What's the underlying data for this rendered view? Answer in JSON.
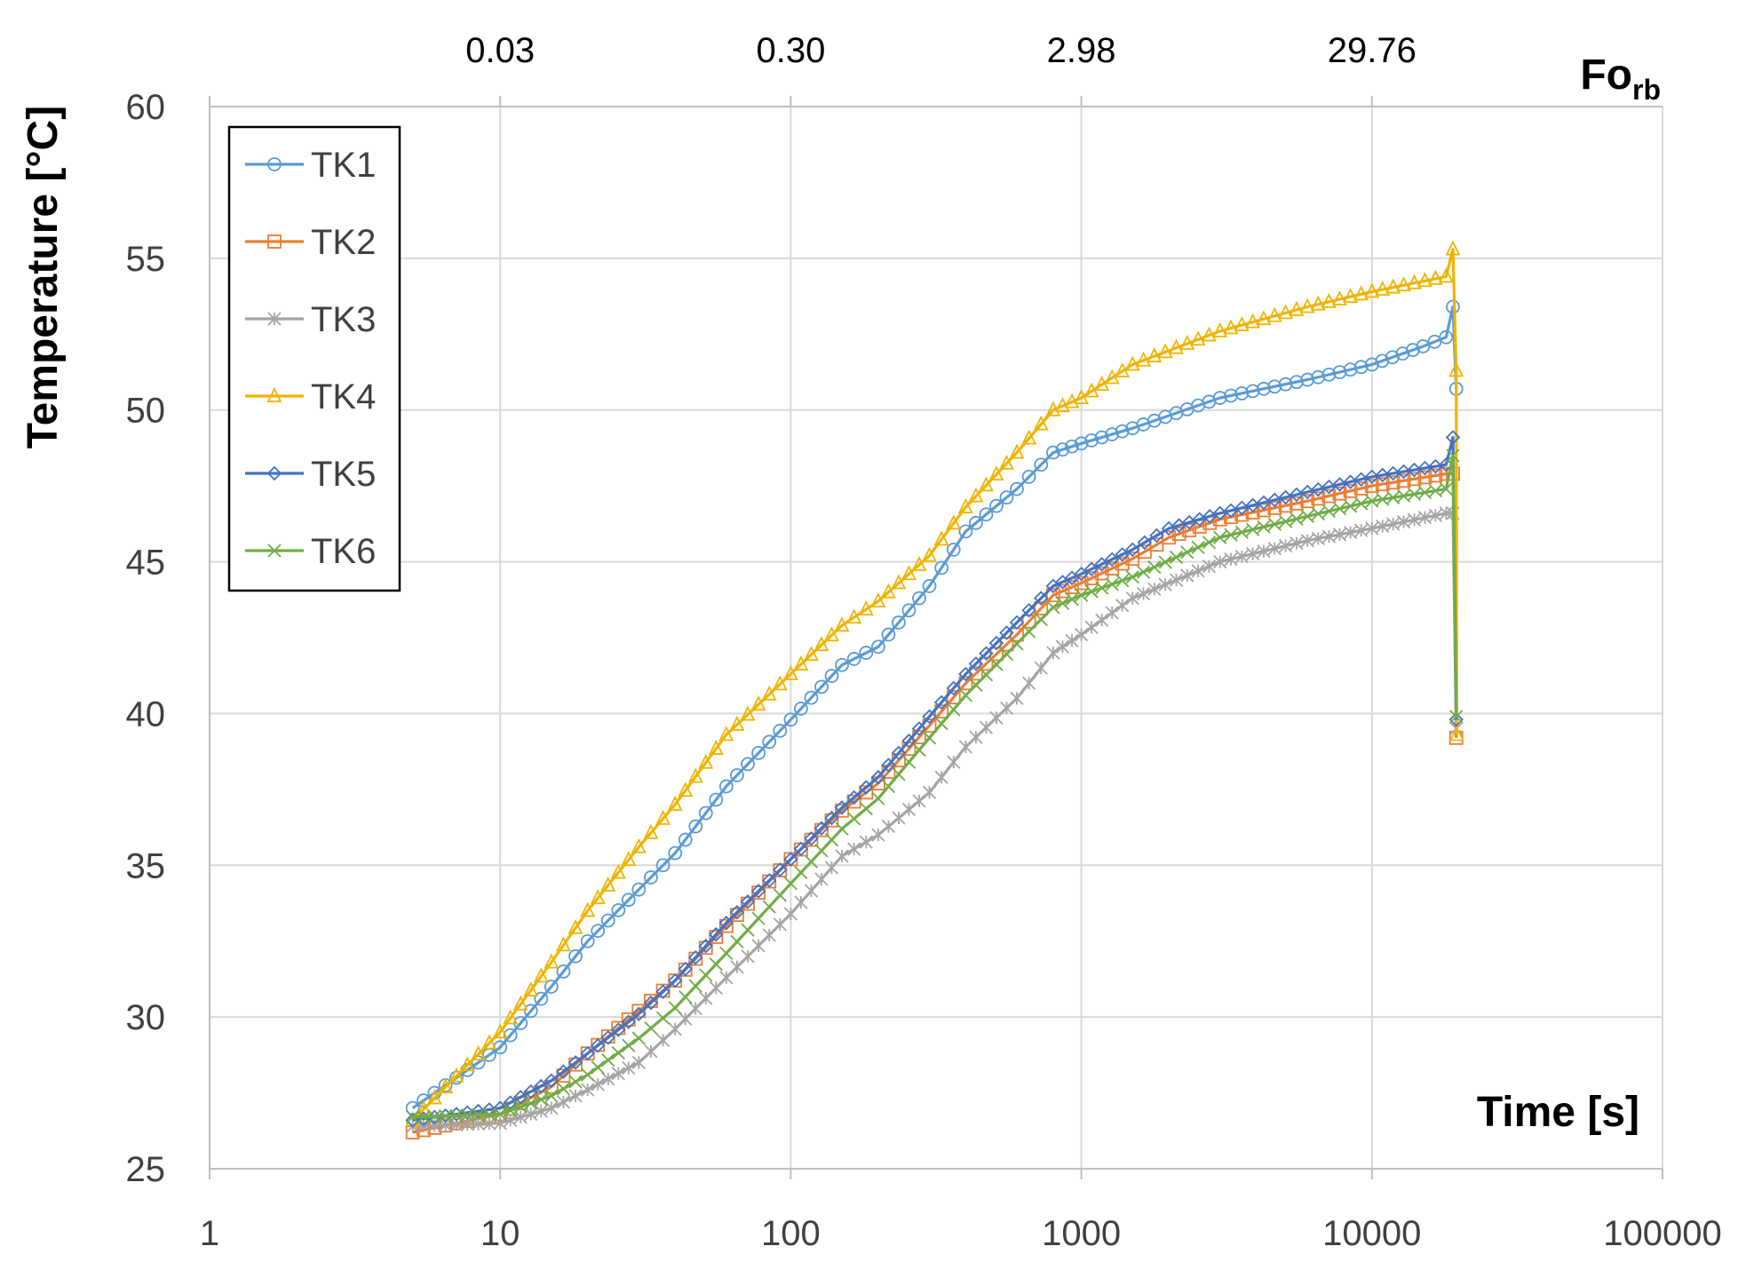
{
  "chart_data": {
    "type": "line",
    "title": "",
    "xlabel": "Time [s]",
    "ylabel": "Temperature [°C]",
    "x_scale": "log",
    "xlim": [
      1,
      100000
    ],
    "ylim": [
      25,
      60
    ],
    "x_ticks": [
      "1",
      "10",
      "100",
      "1000",
      "10000",
      "100000"
    ],
    "y_ticks": [
      "25",
      "30",
      "35",
      "40",
      "45",
      "50",
      "55",
      "60"
    ],
    "top_axis": {
      "label_main": "Fo",
      "label_sub": "rb",
      "ticks": [
        {
          "time": 10,
          "label": "0.03"
        },
        {
          "time": 100,
          "label": "0.30"
        },
        {
          "time": 1000,
          "label": "2.98"
        },
        {
          "time": 10000,
          "label": "29.76"
        }
      ]
    },
    "grid": true,
    "legend_position": "top-left",
    "series": [
      {
        "name": "TK1",
        "color": "#5B9BD5",
        "marker": "circle",
        "points": [
          [
            5,
            27.0
          ],
          [
            10,
            29.0
          ],
          [
            15,
            31.0
          ],
          [
            20,
            32.5
          ],
          [
            30,
            34.2
          ],
          [
            40,
            35.4
          ],
          [
            60,
            37.6
          ],
          [
            100,
            39.8
          ],
          [
            150,
            41.6
          ],
          [
            200,
            42.2
          ],
          [
            300,
            44.2
          ],
          [
            400,
            46.0
          ],
          [
            600,
            47.4
          ],
          [
            800,
            48.6
          ],
          [
            1000,
            48.9
          ],
          [
            1500,
            49.4
          ],
          [
            3000,
            50.4
          ],
          [
            6000,
            51.0
          ],
          [
            10000,
            51.5
          ],
          [
            15000,
            52.1
          ],
          [
            18000,
            52.4
          ],
          [
            19000,
            53.4
          ],
          [
            19500,
            50.7
          ]
        ]
      },
      {
        "name": "TK2",
        "color": "#ED7D31",
        "marker": "square",
        "points": [
          [
            5,
            26.2
          ],
          [
            10,
            26.8
          ],
          [
            15,
            27.7
          ],
          [
            20,
            28.8
          ],
          [
            30,
            30.2
          ],
          [
            40,
            31.2
          ],
          [
            60,
            33.0
          ],
          [
            100,
            35.2
          ],
          [
            150,
            36.8
          ],
          [
            200,
            37.7
          ],
          [
            300,
            39.6
          ],
          [
            400,
            41.0
          ],
          [
            600,
            42.6
          ],
          [
            800,
            43.9
          ],
          [
            1000,
            44.3
          ],
          [
            1500,
            45.1
          ],
          [
            2000,
            45.8
          ],
          [
            3000,
            46.4
          ],
          [
            6000,
            47.0
          ],
          [
            10000,
            47.5
          ],
          [
            18000,
            47.9
          ],
          [
            19000,
            47.9
          ],
          [
            19500,
            39.2
          ]
        ]
      },
      {
        "name": "TK3",
        "color": "#A5A5A5",
        "marker": "star",
        "points": [
          [
            5,
            26.4
          ],
          [
            10,
            26.5
          ],
          [
            15,
            27.0
          ],
          [
            20,
            27.6
          ],
          [
            30,
            28.5
          ],
          [
            40,
            29.6
          ],
          [
            60,
            31.3
          ],
          [
            100,
            33.4
          ],
          [
            150,
            35.3
          ],
          [
            200,
            36.0
          ],
          [
            300,
            37.4
          ],
          [
            400,
            38.9
          ],
          [
            600,
            40.5
          ],
          [
            800,
            42.0
          ],
          [
            1000,
            42.6
          ],
          [
            1500,
            43.8
          ],
          [
            3000,
            45.0
          ],
          [
            6000,
            45.7
          ],
          [
            10000,
            46.1
          ],
          [
            18000,
            46.6
          ],
          [
            19000,
            46.6
          ],
          [
            19500,
            39.5
          ]
        ]
      },
      {
        "name": "TK4",
        "color": "#F0B400",
        "marker": "triangle",
        "points": [
          [
            5,
            26.6
          ],
          [
            10,
            29.5
          ],
          [
            15,
            31.8
          ],
          [
            20,
            33.5
          ],
          [
            30,
            35.6
          ],
          [
            40,
            37.0
          ],
          [
            60,
            39.3
          ],
          [
            100,
            41.3
          ],
          [
            150,
            42.9
          ],
          [
            200,
            43.7
          ],
          [
            300,
            45.2
          ],
          [
            400,
            46.8
          ],
          [
            600,
            48.6
          ],
          [
            800,
            50.0
          ],
          [
            1000,
            50.4
          ],
          [
            1500,
            51.5
          ],
          [
            3000,
            52.6
          ],
          [
            6000,
            53.4
          ],
          [
            10000,
            53.9
          ],
          [
            18000,
            54.4
          ],
          [
            19000,
            55.3
          ],
          [
            19500,
            51.3
          ],
          [
            19600,
            39.3
          ]
        ]
      },
      {
        "name": "TK5",
        "color": "#4472C4",
        "marker": "diamond",
        "points": [
          [
            5,
            26.6
          ],
          [
            10,
            27.0
          ],
          [
            15,
            27.9
          ],
          [
            20,
            28.8
          ],
          [
            30,
            30.1
          ],
          [
            40,
            31.2
          ],
          [
            60,
            33.1
          ],
          [
            100,
            35.2
          ],
          [
            150,
            36.9
          ],
          [
            200,
            37.9
          ],
          [
            300,
            39.9
          ],
          [
            400,
            41.3
          ],
          [
            600,
            43.0
          ],
          [
            800,
            44.2
          ],
          [
            1000,
            44.6
          ],
          [
            1500,
            45.4
          ],
          [
            2000,
            46.1
          ],
          [
            3000,
            46.6
          ],
          [
            6000,
            47.3
          ],
          [
            10000,
            47.8
          ],
          [
            18000,
            48.2
          ],
          [
            19000,
            49.1
          ],
          [
            19500,
            39.8
          ]
        ]
      },
      {
        "name": "TK6",
        "color": "#70AD47",
        "marker": "x",
        "points": [
          [
            5,
            26.7
          ],
          [
            10,
            26.8
          ],
          [
            15,
            27.4
          ],
          [
            20,
            28.1
          ],
          [
            30,
            29.3
          ],
          [
            40,
            30.3
          ],
          [
            60,
            32.1
          ],
          [
            100,
            34.4
          ],
          [
            150,
            36.2
          ],
          [
            200,
            37.2
          ],
          [
            300,
            39.2
          ],
          [
            400,
            40.6
          ],
          [
            600,
            42.3
          ],
          [
            800,
            43.5
          ],
          [
            1000,
            43.9
          ],
          [
            1500,
            44.5
          ],
          [
            3000,
            45.8
          ],
          [
            6000,
            46.5
          ],
          [
            10000,
            47.0
          ],
          [
            18000,
            47.4
          ],
          [
            19000,
            48.5
          ],
          [
            19500,
            39.9
          ]
        ]
      }
    ]
  }
}
